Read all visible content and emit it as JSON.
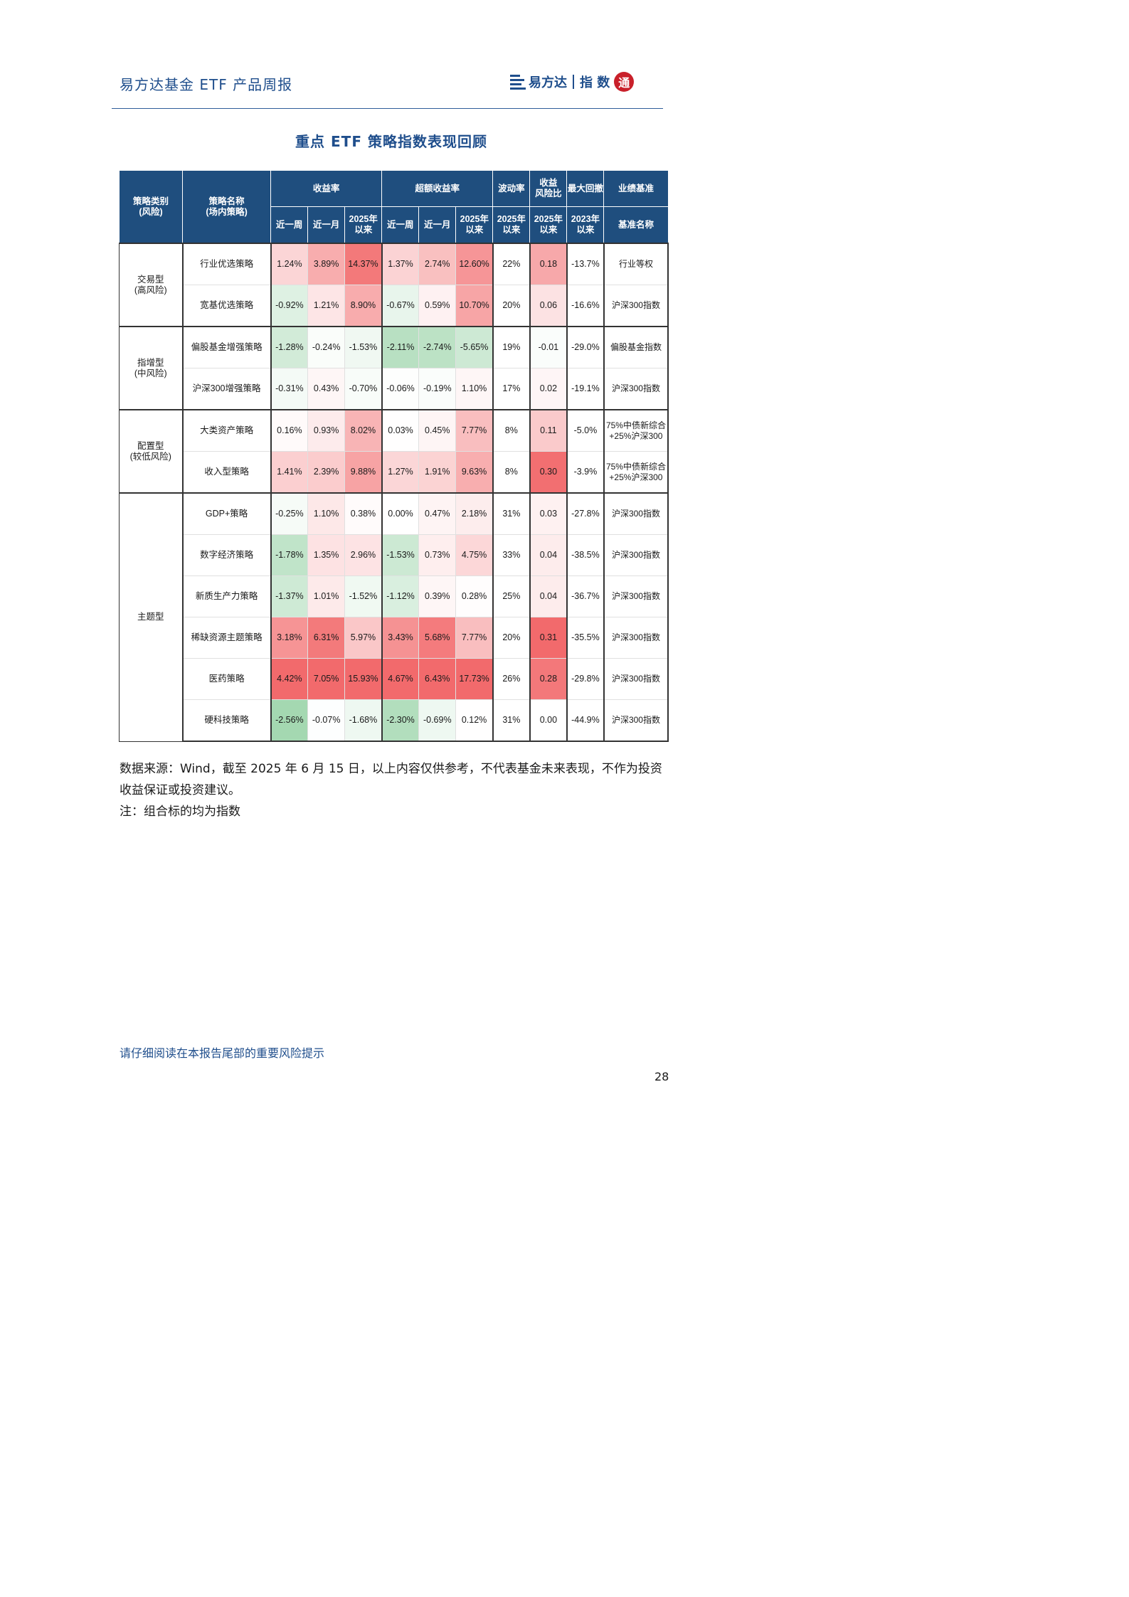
{
  "header": {
    "title": "易方达基金 ETF 产品周报",
    "logo_brand": "易方达",
    "logo_suffix": "指 数",
    "logo_seal": "通"
  },
  "page_title": "重点 ETF 策略指数表现回顾",
  "table": {
    "headers": {
      "category": "策略类别\n(风险)",
      "strategy": "策略名称\n(场内策略)",
      "return": "收益率",
      "excess_return": "超额收益率",
      "volatility": "波动率",
      "ratio": "收益\n风险比",
      "drawdown": "最大回撤",
      "benchmark": "业绩基准",
      "week": "近一周",
      "month": "近一月",
      "ytd": "2025年\n以来",
      "since_2023": "2023年\n以来",
      "benchmark_name": "基准名称"
    },
    "groups": [
      {
        "name": "交易型\n(高风险)",
        "rows": [
          {
            "strategy": "行业优选策略",
            "r_w": "1.24%",
            "r_m": "3.89%",
            "r_y": "14.37%",
            "e_w": "1.37%",
            "e_m": "2.74%",
            "e_y": "12.60%",
            "vol": "22%",
            "ratio": "0.18",
            "dd": "-13.7%",
            "bench": "行业等权"
          },
          {
            "strategy": "宽基优选策略",
            "r_w": "-0.92%",
            "r_m": "1.21%",
            "r_y": "8.90%",
            "e_w": "-0.67%",
            "e_m": "0.59%",
            "e_y": "10.70%",
            "vol": "20%",
            "ratio": "0.06",
            "dd": "-16.6%",
            "bench": "沪深300指数"
          }
        ]
      },
      {
        "name": "指增型\n(中风险)",
        "rows": [
          {
            "strategy": "偏股基金增强策略",
            "r_w": "-1.28%",
            "r_m": "-0.24%",
            "r_y": "-1.53%",
            "e_w": "-2.11%",
            "e_m": "-2.74%",
            "e_y": "-5.65%",
            "vol": "19%",
            "ratio": "-0.01",
            "dd": "-29.0%",
            "bench": "偏股基金指数"
          },
          {
            "strategy": "沪深300增强策略",
            "r_w": "-0.31%",
            "r_m": "0.43%",
            "r_y": "-0.70%",
            "e_w": "-0.06%",
            "e_m": "-0.19%",
            "e_y": "1.10%",
            "vol": "17%",
            "ratio": "0.02",
            "dd": "-19.1%",
            "bench": "沪深300指数"
          }
        ]
      },
      {
        "name": "配置型\n(较低风险)",
        "rows": [
          {
            "strategy": "大类资产策略",
            "r_w": "0.16%",
            "r_m": "0.93%",
            "r_y": "8.02%",
            "e_w": "0.03%",
            "e_m": "0.45%",
            "e_y": "7.77%",
            "vol": "8%",
            "ratio": "0.11",
            "dd": "-5.0%",
            "bench": "75%中债新综合\n+25%沪深300"
          },
          {
            "strategy": "收入型策略",
            "r_w": "1.41%",
            "r_m": "2.39%",
            "r_y": "9.88%",
            "e_w": "1.27%",
            "e_m": "1.91%",
            "e_y": "9.63%",
            "vol": "8%",
            "ratio": "0.30",
            "dd": "-3.9%",
            "bench": "75%中债新综合\n+25%沪深300"
          }
        ]
      },
      {
        "name": "主题型",
        "rows": [
          {
            "strategy": "GDP+策略",
            "r_w": "-0.25%",
            "r_m": "1.10%",
            "r_y": "0.38%",
            "e_w": "0.00%",
            "e_m": "0.47%",
            "e_y": "2.18%",
            "vol": "31%",
            "ratio": "0.03",
            "dd": "-27.8%",
            "bench": "沪深300指数"
          },
          {
            "strategy": "数字经济策略",
            "r_w": "-1.78%",
            "r_m": "1.35%",
            "r_y": "2.96%",
            "e_w": "-1.53%",
            "e_m": "0.73%",
            "e_y": "4.75%",
            "vol": "33%",
            "ratio": "0.04",
            "dd": "-38.5%",
            "bench": "沪深300指数"
          },
          {
            "strategy": "新质生产力策略",
            "r_w": "-1.37%",
            "r_m": "1.01%",
            "r_y": "-1.52%",
            "e_w": "-1.12%",
            "e_m": "0.39%",
            "e_y": "0.28%",
            "vol": "25%",
            "ratio": "0.04",
            "dd": "-36.7%",
            "bench": "沪深300指数"
          },
          {
            "strategy": "稀缺资源主题策略",
            "r_w": "3.18%",
            "r_m": "6.31%",
            "r_y": "5.97%",
            "e_w": "3.43%",
            "e_m": "5.68%",
            "e_y": "7.77%",
            "vol": "20%",
            "ratio": "0.31",
            "dd": "-35.5%",
            "bench": "沪深300指数"
          },
          {
            "strategy": "医药策略",
            "r_w": "4.42%",
            "r_m": "7.05%",
            "r_y": "15.93%",
            "e_w": "4.67%",
            "e_m": "6.43%",
            "e_y": "17.73%",
            "vol": "26%",
            "ratio": "0.28",
            "dd": "-29.8%",
            "bench": "沪深300指数"
          },
          {
            "strategy": "硬科技策略",
            "r_w": "-2.56%",
            "r_m": "-0.07%",
            "r_y": "-1.68%",
            "e_w": "-2.30%",
            "e_m": "-0.69%",
            "e_y": "0.12%",
            "vol": "31%",
            "ratio": "0.00",
            "dd": "-44.9%",
            "bench": "沪深300指数"
          }
        ]
      }
    ],
    "colors": {
      "header_bg": "#1f4e7e",
      "positive": "#f26a6c",
      "negative": "#62bb78",
      "neutral": "#ffffff"
    }
  },
  "notes": [
    "数据来源：Wind，截至 2025 年 6 月 15 日，以上内容仅供参考，不代表基金未来表现，不作为投资收益保证或投资建议。",
    "注：组合标的均为指数"
  ],
  "footer": {
    "notice": "请仔细阅读在本报告尾部的重要风险提示",
    "page_number": "28"
  }
}
